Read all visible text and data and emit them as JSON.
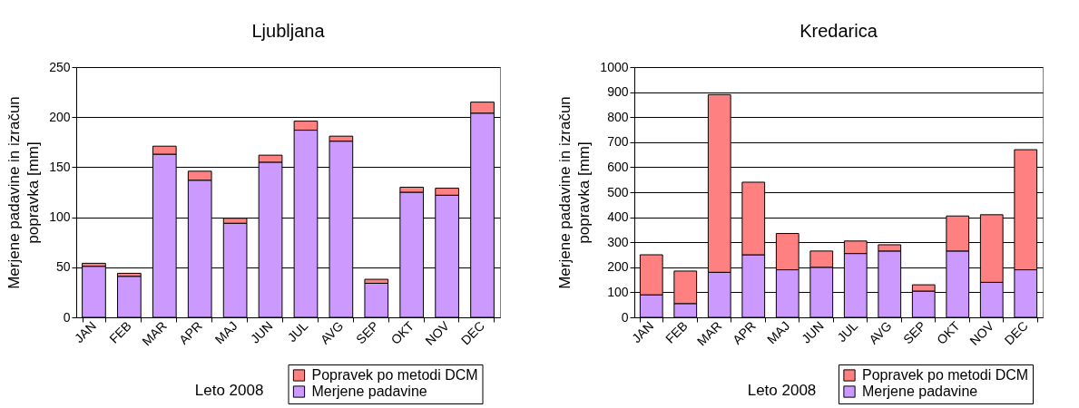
{
  "chart_data": [
    {
      "type": "bar",
      "title": "Ljubljana",
      "xlabel": "Leto 2008",
      "ylabel": "Merjene padavine in izračun popravka [mm]",
      "categories": [
        "JAN",
        "FEB",
        "MAR",
        "APR",
        "MAJ",
        "JUN",
        "JUL",
        "AVG",
        "SEP",
        "OKT",
        "NOV",
        "DEC"
      ],
      "series": [
        {
          "name": "Merjene padavine",
          "color": "#cc99ff",
          "values": [
            51,
            41,
            163,
            137,
            94,
            155,
            187,
            176,
            34,
            125,
            122,
            204
          ]
        },
        {
          "name": "Popravek po metodi DCM",
          "color": "#ff8080",
          "values": [
            3,
            3,
            8,
            9,
            5,
            7,
            9,
            5,
            4,
            5,
            7,
            11
          ]
        }
      ],
      "stacked": true,
      "ylim": [
        0,
        250
      ],
      "yticks": [
        0,
        50,
        100,
        150,
        200,
        250
      ],
      "grid": "y",
      "legend": "bottom right"
    },
    {
      "type": "bar",
      "title": "Kredarica",
      "xlabel": "Leto 2008",
      "ylabel": "Merjene padavine in izračun popravka [mm]",
      "categories": [
        "JAN",
        "FEB",
        "MAR",
        "APR",
        "MAJ",
        "JUN",
        "JUL",
        "AVG",
        "SEP",
        "OKT",
        "NOV",
        "DEC"
      ],
      "series": [
        {
          "name": "Merjene padavine",
          "color": "#cc99ff",
          "values": [
            90,
            55,
            180,
            250,
            190,
            200,
            255,
            265,
            105,
            265,
            140,
            190
          ]
        },
        {
          "name": "Popravek po metodi DCM",
          "color": "#ff8080",
          "values": [
            160,
            130,
            710,
            290,
            145,
            65,
            50,
            25,
            25,
            140,
            270,
            480
          ]
        }
      ],
      "stacked": true,
      "ylim": [
        0,
        1000
      ],
      "yticks": [
        0,
        100,
        200,
        300,
        400,
        500,
        600,
        700,
        800,
        900,
        1000
      ],
      "grid": "y",
      "legend": "bottom right"
    }
  ]
}
